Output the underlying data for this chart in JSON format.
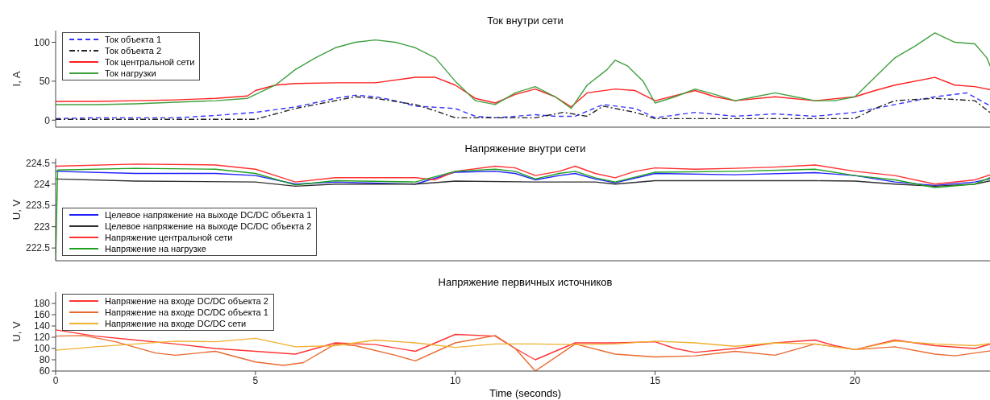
{
  "chart_data": [
    {
      "type": "line",
      "title": "Ток внутри сети",
      "ylabel": "I, A",
      "xlim": [
        0,
        23.5
      ],
      "xticks": [
        0,
        5,
        10,
        15,
        20
      ],
      "ylim": [
        -9,
        115
      ],
      "yticks": [
        0,
        50,
        100
      ],
      "tick_labels": "y",
      "legend": "top left",
      "marker": "none",
      "series": [
        {
          "name": "Ток объекта 1",
          "color": "#3333ff",
          "line_style": "dashed",
          "x": [
            0,
            1,
            3,
            4,
            5,
            6,
            7,
            7.5,
            8,
            8.5,
            9,
            10,
            10.5,
            11,
            12,
            12.5,
            13,
            13.7,
            14.5,
            15,
            16,
            17,
            18,
            19,
            20,
            21,
            22,
            22.8,
            23.5
          ],
          "values": [
            2,
            3,
            3,
            6,
            10,
            17,
            28,
            32,
            30,
            25,
            18,
            15,
            5,
            3,
            7,
            5,
            5,
            20,
            15,
            3,
            10,
            5,
            8,
            5,
            10,
            20,
            30,
            35,
            15
          ]
        },
        {
          "name": "Ток объекта 2",
          "color": "#222222",
          "line_style": "dashdot",
          "x": [
            0,
            5,
            6,
            7,
            7.5,
            8,
            9,
            9.5,
            10,
            12,
            12.7,
            13.3,
            13.7,
            14.5,
            15,
            20,
            20.5,
            21,
            22,
            23,
            23.5
          ],
          "values": [
            1,
            1,
            15,
            25,
            30,
            28,
            20,
            12,
            3,
            3,
            10,
            5,
            18,
            10,
            2,
            2,
            15,
            25,
            28,
            25,
            5
          ]
        },
        {
          "name": "Ток центральной сети",
          "color": "#ff2020",
          "line_style": "solid",
          "x": [
            0,
            1,
            2,
            3,
            4,
            4.8,
            5,
            5.5,
            6,
            7,
            8,
            9,
            9.5,
            10,
            10.5,
            11,
            11.5,
            12,
            12.5,
            12.9,
            13.3,
            14,
            14.5,
            15,
            16,
            16.5,
            17,
            18,
            19,
            20,
            20.5,
            21,
            22,
            22.5,
            23,
            23.5
          ],
          "values": [
            24,
            24,
            25,
            26,
            28,
            31,
            38,
            45,
            47,
            48,
            48,
            55,
            55,
            45,
            28,
            22,
            33,
            40,
            30,
            17,
            35,
            40,
            38,
            25,
            38,
            30,
            25,
            30,
            25,
            30,
            38,
            45,
            55,
            45,
            43,
            38
          ]
        },
        {
          "name": "Ток нагрузки",
          "color": "#40a040",
          "line_style": "solid",
          "x": [
            0,
            1,
            2,
            3,
            4,
            4.8,
            5.5,
            6,
            6.5,
            7,
            7.5,
            8,
            8.5,
            9,
            9.5,
            10,
            10.5,
            11,
            11.5,
            12,
            12.5,
            12.9,
            13.3,
            13.8,
            14,
            14.3,
            14.7,
            15,
            15.5,
            16,
            16.5,
            17,
            17.5,
            18,
            18.5,
            19,
            19.5,
            20,
            20.5,
            21,
            21.5,
            22,
            22.5,
            23,
            23.3,
            23.5
          ],
          "values": [
            20,
            20,
            21,
            23,
            25,
            28,
            45,
            65,
            80,
            93,
            100,
            103,
            100,
            93,
            80,
            50,
            25,
            20,
            35,
            43,
            30,
            15,
            45,
            65,
            77,
            70,
            50,
            22,
            30,
            40,
            33,
            25,
            30,
            35,
            30,
            25,
            25,
            30,
            55,
            80,
            95,
            112,
            100,
            98,
            80,
            55
          ]
        }
      ]
    },
    {
      "type": "line",
      "title": "Напряжение внутри сети",
      "ylabel": "U, V",
      "xlim": [
        0,
        23.5
      ],
      "xticks": [
        0,
        5,
        10,
        15,
        20
      ],
      "ylim": [
        222.2,
        224.6
      ],
      "yticks": [
        222.5,
        223,
        223.5,
        224,
        224.5
      ],
      "tick_labels": "y",
      "legend": "bottom left",
      "marker": "none",
      "series": [
        {
          "name": "Целевое напряжение на выходе DC/DC объекта 1",
          "color": "#2020ff",
          "x": [
            0,
            2,
            4,
            5,
            6,
            7,
            9,
            10,
            11,
            11.5,
            12,
            12.6,
            13,
            13.5,
            14,
            15,
            17,
            19,
            20,
            21,
            22,
            23,
            23.5
          ],
          "values": [
            224.3,
            224.25,
            224.25,
            224.2,
            224.0,
            224.05,
            224.0,
            224.28,
            224.3,
            224.25,
            224.1,
            224.2,
            224.25,
            224.12,
            224.03,
            224.25,
            224.22,
            224.27,
            224.2,
            224.05,
            223.97,
            224.05,
            224.15
          ]
        },
        {
          "name": "Целевое напряжение на выходе DC/DC объекта 2",
          "color": "#303030",
          "x": [
            0,
            2,
            5,
            6,
            7,
            9,
            10,
            12,
            13.5,
            14,
            15,
            19,
            20,
            21,
            22,
            23,
            23.5
          ],
          "values": [
            224.12,
            224.07,
            224.05,
            223.95,
            224.0,
            224.0,
            224.07,
            224.05,
            224.05,
            224.0,
            224.08,
            224.08,
            224.07,
            224.0,
            223.95,
            224.0,
            224.1
          ]
        },
        {
          "name": "Напряжение центральной сети",
          "color": "#ff3030",
          "x": [
            0,
            2,
            4,
            5,
            5.5,
            6,
            7,
            8,
            9,
            9.5,
            10,
            11,
            11.5,
            12,
            12.6,
            13,
            13.5,
            14,
            14.5,
            15,
            16,
            17,
            18,
            19,
            20,
            21,
            22,
            23,
            23.5
          ],
          "values": [
            224.42,
            224.47,
            224.45,
            224.35,
            224.2,
            224.05,
            224.15,
            224.15,
            224.15,
            224.1,
            224.3,
            224.42,
            224.38,
            224.2,
            224.3,
            224.42,
            224.25,
            224.15,
            224.3,
            224.38,
            224.35,
            224.37,
            224.4,
            224.45,
            224.3,
            224.2,
            224.0,
            224.1,
            224.25
          ]
        },
        {
          "name": "Напряжение на нагрузке",
          "color": "#20a020",
          "x": [
            0,
            0.05,
            2,
            4,
            5,
            6,
            7,
            9,
            10,
            11,
            11.5,
            12,
            12.6,
            13,
            13.5,
            14,
            15,
            17,
            19,
            20,
            21,
            22,
            23,
            23.5
          ],
          "values": [
            222.2,
            224.33,
            224.37,
            224.35,
            224.25,
            223.98,
            224.08,
            224.05,
            224.3,
            224.35,
            224.3,
            224.12,
            224.25,
            224.3,
            224.15,
            224.05,
            224.28,
            224.3,
            224.35,
            224.2,
            224.1,
            223.92,
            224.0,
            224.2
          ]
        }
      ]
    },
    {
      "type": "line",
      "title": "Напряжение первичных источников",
      "ylabel": "U, V",
      "xlabel": "Time (seconds)",
      "xlim": [
        0,
        23.5
      ],
      "xticks": [
        0,
        5,
        10,
        15,
        20
      ],
      "ylim": [
        60,
        200
      ],
      "yticks": [
        60,
        80,
        100,
        120,
        140,
        160,
        180
      ],
      "legend": "top left",
      "marker": "none",
      "series": [
        {
          "name": "Напряжение на входе DC/DC объекта 2",
          "color": "#ff3535",
          "x": [
            0,
            1,
            2,
            3,
            4,
            5,
            6,
            7,
            8,
            9,
            10,
            11,
            11.5,
            12,
            12.5,
            13,
            14,
            15,
            15.5,
            16,
            17,
            18,
            19,
            19.5,
            20,
            21,
            22,
            23,
            23.5
          ],
          "values": [
            133,
            122,
            115,
            108,
            100,
            95,
            90,
            110,
            107,
            95,
            125,
            122,
            100,
            80,
            95,
            110,
            110,
            112,
            100,
            93,
            100,
            110,
            115,
            105,
            98,
            115,
            105,
            100,
            110
          ]
        },
        {
          "name": "Напряжение на входе DC/DC объекта 1",
          "color": "#e86a30",
          "x": [
            0,
            0.7,
            1.5,
            2.5,
            3,
            4,
            5,
            5.7,
            6.2,
            7,
            7.5,
            8.5,
            9,
            10,
            11,
            11.5,
            12,
            13,
            14,
            15,
            16,
            17,
            18,
            19,
            20,
            21,
            22,
            22.5,
            23.5
          ],
          "values": [
            122,
            123,
            112,
            92,
            88,
            95,
            76,
            70,
            75,
            108,
            105,
            88,
            78,
            110,
            123,
            100,
            60,
            108,
            90,
            85,
            87,
            95,
            88,
            108,
            98,
            103,
            90,
            87,
            97
          ]
        },
        {
          "name": "Напряжение на входе DC/DC сети",
          "color": "#f0b030",
          "x": [
            0,
            1,
            2,
            3,
            4,
            5,
            6,
            7,
            8,
            9,
            10,
            11,
            12,
            13,
            14,
            15,
            16,
            17,
            18,
            19,
            20,
            21,
            22,
            23,
            23.5
          ],
          "values": [
            97,
            103,
            108,
            113,
            112,
            118,
            103,
            105,
            115,
            110,
            102,
            108,
            108,
            107,
            108,
            113,
            110,
            104,
            110,
            108,
            98,
            113,
            108,
            105,
            110
          ]
        }
      ]
    }
  ]
}
